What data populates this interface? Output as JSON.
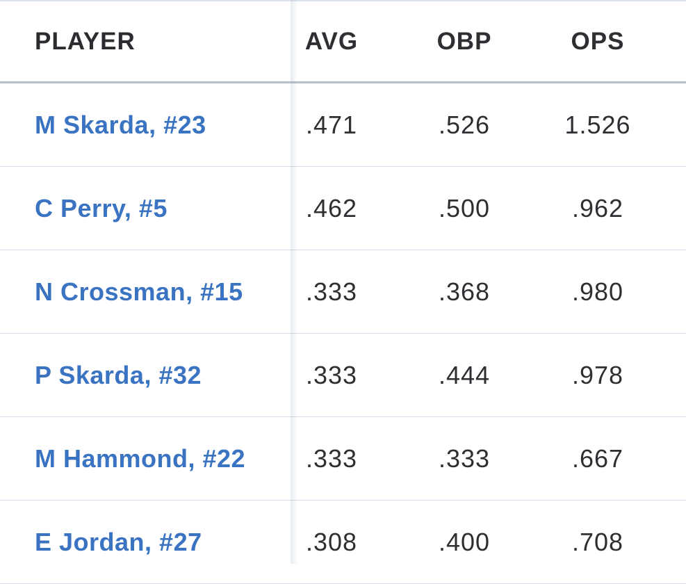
{
  "table": {
    "columns": [
      "PLAYER",
      "AVG",
      "OBP",
      "OPS"
    ],
    "rows": [
      [
        "M Skarda, #23",
        ".471",
        ".526",
        "1.526"
      ],
      [
        "C Perry, #5",
        ".462",
        ".500",
        ".962"
      ],
      [
        "N Crossman, #15",
        ".333",
        ".368",
        ".980"
      ],
      [
        "P Skarda, #32",
        ".333",
        ".444",
        ".978"
      ],
      [
        "M Hammond, #22",
        ".333",
        ".333",
        ".667"
      ],
      [
        "E Jordan, #27",
        ".308",
        ".400",
        ".708"
      ]
    ]
  }
}
